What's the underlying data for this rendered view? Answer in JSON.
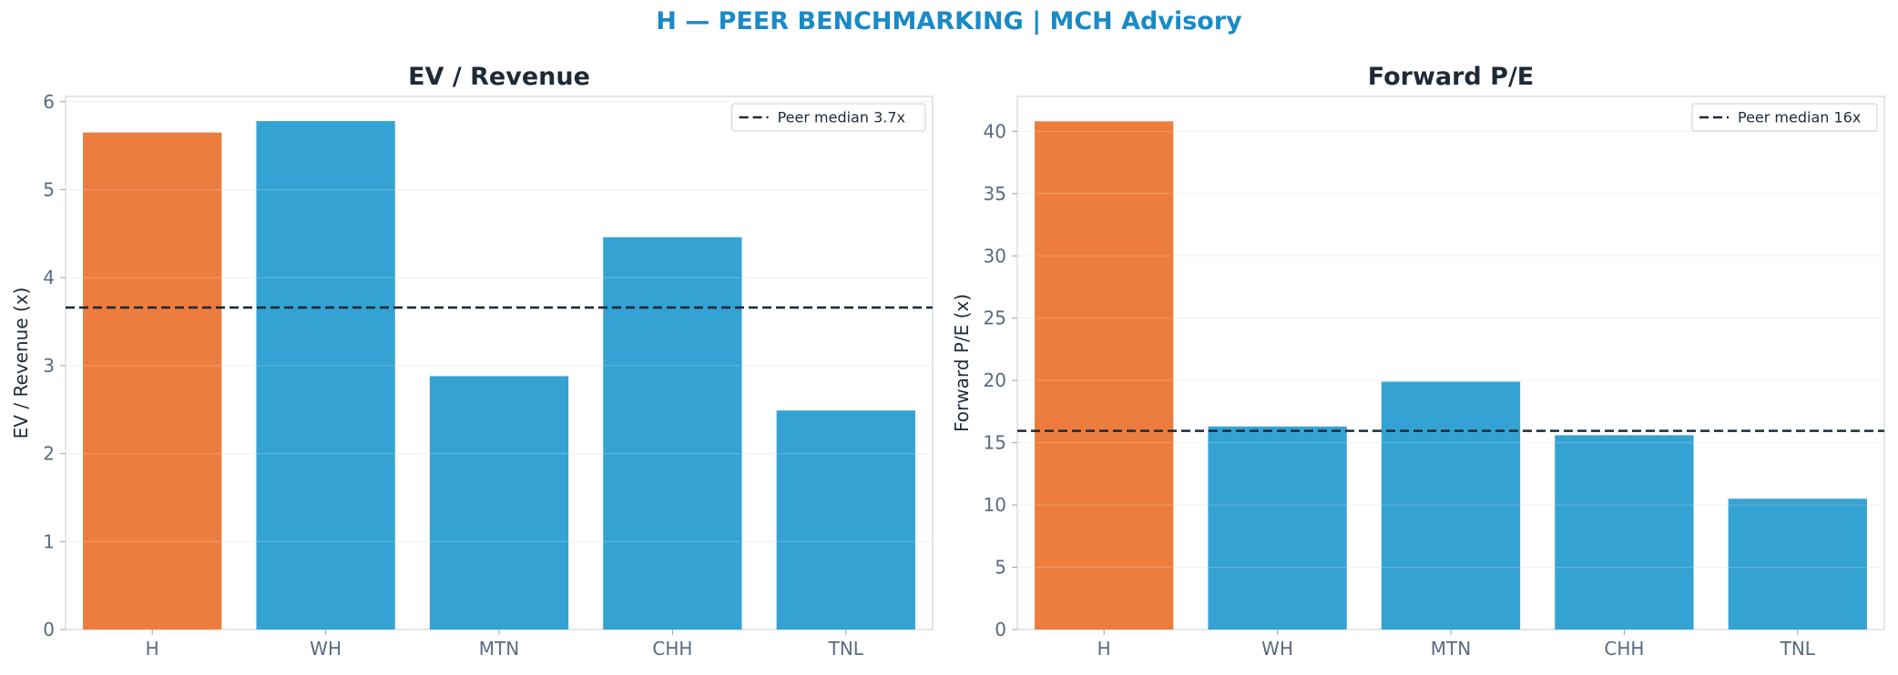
{
  "suptitle": "H — PEER BENCHMARKING | MCH Advisory",
  "colors": {
    "highlight": "#ed7d3e",
    "peer": "#34a3d4",
    "median_line": "#1f2a37",
    "suptitle": "#1a8ac6"
  },
  "chart_data": [
    {
      "type": "bar",
      "title": "EV / Revenue",
      "ylabel": "EV / Revenue (x)",
      "xlabel": "",
      "categories": [
        "H",
        "WH",
        "MTN",
        "CHH",
        "TNL"
      ],
      "values": [
        5.65,
        5.78,
        2.88,
        4.46,
        2.49
      ],
      "highlight_category": "H",
      "ylim": [
        0,
        6.06
      ],
      "yticks": [
        0,
        1,
        2,
        3,
        4,
        5,
        6
      ],
      "reference_line": {
        "value": 3.66,
        "label": "Peer median 3.7x",
        "style": "dashed"
      },
      "legend_position": "top-right",
      "grid": "y"
    },
    {
      "type": "bar",
      "title": "Forward P/E",
      "ylabel": "Forward P/E (x)",
      "xlabel": "",
      "categories": [
        "H",
        "WH",
        "MTN",
        "CHH",
        "TNL"
      ],
      "values": [
        40.8,
        16.3,
        19.9,
        15.6,
        10.5
      ],
      "highlight_category": "H",
      "ylim": [
        0,
        42.8
      ],
      "yticks": [
        0,
        5,
        10,
        15,
        20,
        25,
        30,
        35,
        40
      ],
      "reference_line": {
        "value": 15.95,
        "label": "Peer median 16x",
        "style": "dashed"
      },
      "legend_position": "top-right",
      "grid": "y"
    }
  ]
}
